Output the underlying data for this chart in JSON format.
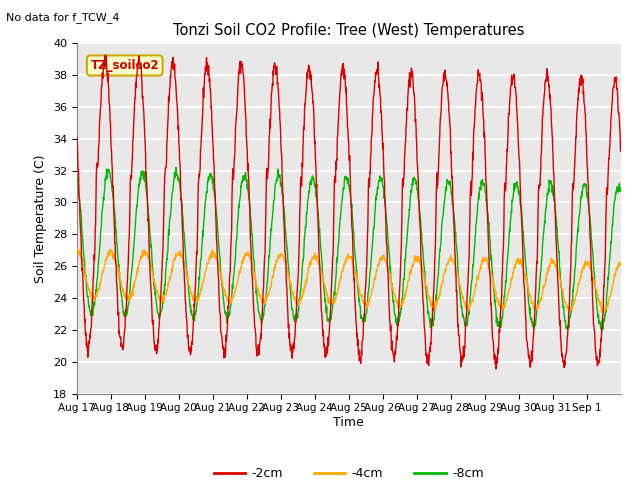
{
  "title": "Tonzi Soil CO2 Profile: Tree (West) Temperatures",
  "note": "No data for f_TCW_4",
  "ylabel": "Soil Temperature (C)",
  "xlabel": "Time",
  "legend_label": "TZ_soilco2",
  "series_labels": [
    "-2cm",
    "-4cm",
    "-8cm"
  ],
  "series_colors": [
    "#dd0000",
    "#ffaa00",
    "#00bb00"
  ],
  "ylim": [
    18,
    40
  ],
  "xtick_labels": [
    "Aug 17",
    "Aug 18",
    "Aug 19",
    "Aug 20",
    "Aug 21",
    "Aug 22",
    "Aug 23",
    "Aug 24",
    "Aug 25",
    "Aug 26",
    "Aug 27",
    "Aug 28",
    "Aug 29",
    "Aug 30",
    "Aug 31",
    "Sep 1"
  ],
  "fig_bg_color": "#ffffff",
  "plot_bg_color": "#e8e8e8",
  "grid_color": "#ffffff",
  "linewidth": 1.0
}
